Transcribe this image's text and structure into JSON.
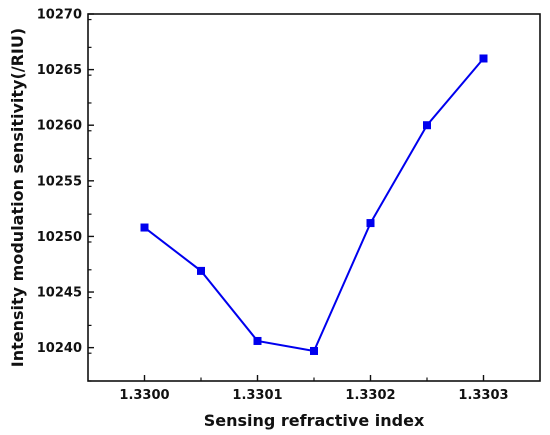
{
  "chart_data": {
    "type": "line",
    "title": "",
    "xlabel": "Sensing refractive index",
    "ylabel": "Intensity modulation sensitivity(/RIU)",
    "xlim": [
      1.32995,
      1.33035
    ],
    "ylim": [
      10237,
      10270
    ],
    "x_ticks": [
      "1.3300",
      "1.3301",
      "1.3302",
      "1.3303"
    ],
    "x_tick_values": [
      1.33,
      1.3301,
      1.3302,
      1.3303
    ],
    "y_ticks": [
      "10240",
      "10245",
      "10250",
      "10255",
      "10260",
      "10265",
      "10270"
    ],
    "y_tick_values": [
      10240,
      10245,
      10250,
      10255,
      10260,
      10265,
      10270
    ],
    "grid": false,
    "legend": "none",
    "series": [
      {
        "color": "#0000ee",
        "marker": "square",
        "x": [
          1.33,
          1.33005,
          1.3301,
          1.33015,
          1.3302,
          1.33025,
          1.3303
        ],
        "y": [
          10250.8,
          10246.9,
          10240.6,
          10239.7,
          10251.2,
          10260.0,
          10266.0
        ]
      }
    ]
  }
}
